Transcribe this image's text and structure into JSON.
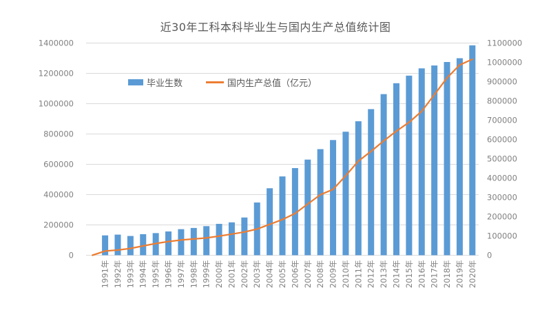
{
  "chart_data": {
    "type": "bar",
    "combo": "bar+line dual-axis",
    "title": "近30年工科本科毕业生与国内生产总值统计图",
    "categories": [
      "1991年",
      "1992年",
      "1993年",
      "1994年",
      "1995年",
      "1996年",
      "1997年",
      "1998年",
      "1999年",
      "2000年",
      "2001年",
      "2002年",
      "2003年",
      "2004年",
      "2005年",
      "2006年",
      "2007年",
      "2008年",
      "2009年",
      "2010年",
      "2011年",
      "2012年",
      "2013年",
      "2014年",
      "2015年",
      "2016年",
      "2017年",
      "2018年",
      "2019年",
      "2020年"
    ],
    "series": [
      {
        "name": "毕业生数",
        "type": "bar",
        "axis": "left",
        "color": "#5B9BD5",
        "values": [
          131000,
          136000,
          127000,
          139000,
          146000,
          157000,
          172000,
          180000,
          192000,
          207000,
          217000,
          249000,
          348000,
          442000,
          520000,
          575000,
          631000,
          700000,
          760000,
          815000,
          884000,
          964000,
          1063000,
          1135000,
          1185000,
          1233000,
          1252000,
          1275000,
          1300000,
          1385000
        ]
      },
      {
        "name": "国内生产总值（亿元）",
        "type": "line",
        "axis": "right",
        "color": "#ED7D31",
        "line_starts_at_zero_before_first_category": true,
        "values": [
          21781,
          26923,
          35334,
          48198,
          60794,
          71177,
          78973,
          84402,
          89677,
          99215,
          109655,
          120333,
          135823,
          159878,
          184937,
          216314,
          265810,
          314045,
          340903,
          412119,
          487940,
          538580,
          592963,
          643563,
          688858,
          746395,
          832036,
          919281,
          986515,
          1015986
        ]
      }
    ],
    "left_axis": {
      "min": 0,
      "max": 1400000,
      "step": 200000
    },
    "right_axis": {
      "min": 0,
      "max": 1100000,
      "step": 100000
    },
    "grid": true,
    "legend_position": "inside-upper-left",
    "colors": {
      "background": "#FFFFFF",
      "gridline": "#D9D9D9",
      "tick_text": "#808080",
      "title_text": "#595959"
    }
  }
}
